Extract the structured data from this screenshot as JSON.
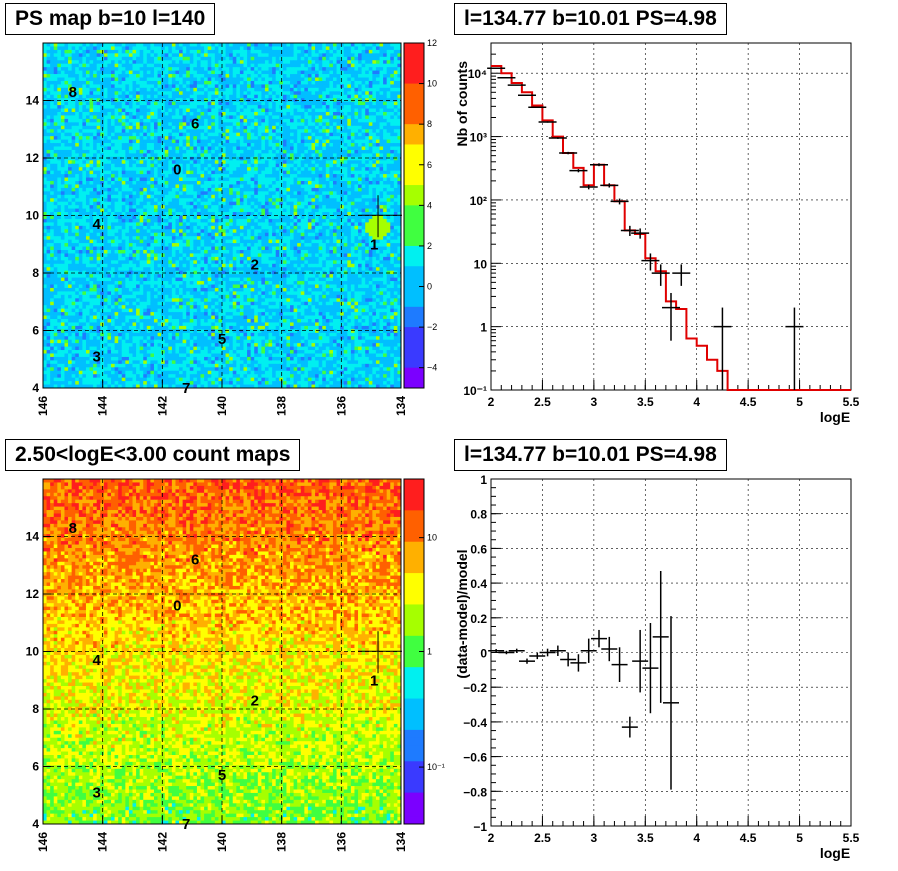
{
  "panels": {
    "ps_map": {
      "title": "PS map b=10 l=140"
    },
    "count_map": {
      "title": "2.50<logE<3.00 count maps"
    },
    "spectrum": {
      "title": "l=134.77 b=10.01 PS=4.98"
    },
    "residual": {
      "title": "l=134.77 b=10.01 PS=4.98"
    }
  },
  "colors": {
    "accent": "#e00000",
    "palette": [
      "#7b00ff",
      "#3a3aff",
      "#1e7bff",
      "#00bfff",
      "#00f0f0",
      "#40ff40",
      "#a6ff00",
      "#ffff00",
      "#ffb000",
      "#ff6000",
      "#ff1e1e"
    ]
  },
  "chart_data": [
    {
      "type": "heatmap",
      "name": "ps_map",
      "xlim": [
        146,
        134
      ],
      "ylim": [
        4,
        16
      ],
      "x_ticks": [
        "146",
        "144",
        "142",
        "140",
        "138",
        "136",
        "134"
      ],
      "y_ticks": [
        "4",
        "6",
        "8",
        "10",
        "12",
        "14"
      ],
      "palette_ticks": [
        "12",
        "10",
        "8",
        "6",
        "4",
        "2",
        "0",
        "−2",
        "−4"
      ],
      "palette_range": [
        -5,
        12
      ],
      "sources": [
        {
          "label": "0",
          "l": 141.5,
          "b": 11.6
        },
        {
          "label": "1",
          "l": 134.9,
          "b": 9.0
        },
        {
          "label": "2",
          "l": 138.9,
          "b": 8.3
        },
        {
          "label": "3",
          "l": 144.2,
          "b": 5.1
        },
        {
          "label": "4",
          "l": 144.2,
          "b": 9.7
        },
        {
          "label": "5",
          "l": 140.0,
          "b": 5.7
        },
        {
          "label": "6",
          "l": 140.9,
          "b": 13.2
        },
        {
          "label": "7",
          "l": 141.2,
          "b": 4.0
        },
        {
          "label": "8",
          "l": 145.0,
          "b": 14.3
        }
      ],
      "marker": {
        "l": 134.77,
        "b": 10.01
      }
    },
    {
      "type": "heatmap",
      "name": "count_map",
      "xlim": [
        146,
        134
      ],
      "ylim": [
        4,
        16
      ],
      "x_ticks": [
        "146",
        "144",
        "142",
        "140",
        "138",
        "136",
        "134"
      ],
      "y_ticks": [
        "4",
        "6",
        "8",
        "10",
        "12",
        "14"
      ],
      "palette_ticks": [
        "10",
        "1",
        "10⁻¹"
      ],
      "sources": [
        {
          "label": "0",
          "l": 141.5,
          "b": 11.6
        },
        {
          "label": "1",
          "l": 134.9,
          "b": 9.0
        },
        {
          "label": "2",
          "l": 138.9,
          "b": 8.3
        },
        {
          "label": "3",
          "l": 144.2,
          "b": 5.1
        },
        {
          "label": "4",
          "l": 144.2,
          "b": 9.7
        },
        {
          "label": "5",
          "l": 140.0,
          "b": 5.7
        },
        {
          "label": "6",
          "l": 140.9,
          "b": 13.2
        },
        {
          "label": "7",
          "l": 141.2,
          "b": 4.0
        },
        {
          "label": "8",
          "l": 145.0,
          "b": 14.3
        }
      ],
      "marker": {
        "l": 134.77,
        "b": 10.01
      }
    },
    {
      "type": "line",
      "name": "spectrum",
      "xlabel": "logE",
      "ylabel": "Nb of counts",
      "xlim": [
        2,
        5.5
      ],
      "ylim": [
        0.1,
        30000
      ],
      "yscale": "log",
      "x_ticks": [
        "2",
        "2.5",
        "3",
        "3.5",
        "4",
        "4.5",
        "5",
        "5.5"
      ],
      "y_ticks": [
        {
          "v": 0.1,
          "t": "10⁻¹"
        },
        {
          "v": 1,
          "t": "1"
        },
        {
          "v": 10,
          "t": "10"
        },
        {
          "v": 100,
          "t": "10²"
        },
        {
          "v": 1000,
          "t": "10³"
        },
        {
          "v": 10000,
          "t": "10⁴"
        }
      ],
      "grid": true,
      "data": {
        "x": [
          2.05,
          2.15,
          2.25,
          2.35,
          2.45,
          2.55,
          2.65,
          2.75,
          2.85,
          2.95,
          3.05,
          3.15,
          3.25,
          3.35,
          3.45,
          3.55,
          3.65,
          3.75,
          3.85,
          4.25,
          4.95
        ],
        "y": [
          12000,
          8500,
          6500,
          4500,
          2900,
          1700,
          950,
          550,
          290,
          160,
          360,
          170,
          95,
          33,
          30,
          11,
          7,
          2,
          7,
          1,
          1
        ],
        "yerr": [
          110,
          90,
          80,
          70,
          55,
          42,
          31,
          24,
          17,
          13,
          19,
          13,
          10,
          6,
          5.5,
          3.3,
          2.6,
          1.4,
          2.6,
          1,
          1
        ]
      },
      "model": {
        "edges": [
          2.0,
          2.1,
          2.2,
          2.3,
          2.4,
          2.5,
          2.6,
          2.7,
          2.8,
          2.9,
          3.0,
          3.1,
          3.2,
          3.3,
          3.4,
          3.5,
          3.6,
          3.7,
          3.8,
          3.9,
          4.0,
          4.1,
          4.2,
          4.3,
          5.5
        ],
        "values": [
          13000,
          10000,
          7000,
          5000,
          3100,
          1800,
          1000,
          550,
          320,
          170,
          360,
          170,
          95,
          33,
          29,
          12,
          7.5,
          2.5,
          1.9,
          0.65,
          0.5,
          0.3,
          0.2,
          0.1
        ]
      }
    },
    {
      "type": "scatter",
      "name": "residual",
      "xlabel": "logE",
      "ylabel": "(data-model)/model",
      "xlim": [
        2,
        5.5
      ],
      "ylim": [
        -1,
        1
      ],
      "x_ticks": [
        "2",
        "2.5",
        "3",
        "3.5",
        "4",
        "4.5",
        "5",
        "5.5"
      ],
      "y_ticks": [
        "−1",
        "−0.8",
        "−0.6",
        "−0.4",
        "−0.2",
        "0",
        "0.2",
        "0.4",
        "0.6",
        "0.8",
        "1"
      ],
      "grid": true,
      "data": {
        "x": [
          2.05,
          2.15,
          2.25,
          2.35,
          2.45,
          2.55,
          2.65,
          2.75,
          2.85,
          2.95,
          3.05,
          3.15,
          3.25,
          3.35,
          3.45,
          3.55,
          3.65,
          3.75
        ],
        "y": [
          0.01,
          0.0,
          0.01,
          -0.05,
          -0.02,
          0.0,
          0.01,
          -0.04,
          -0.06,
          0.01,
          0.08,
          0.02,
          -0.07,
          -0.43,
          -0.05,
          -0.09,
          0.09,
          -0.29
        ],
        "yerr": [
          0.01,
          0.01,
          0.012,
          0.015,
          0.018,
          0.022,
          0.03,
          0.04,
          0.05,
          0.07,
          0.05,
          0.07,
          0.1,
          0.06,
          0.18,
          0.26,
          0.38,
          0.5
        ]
      }
    }
  ]
}
